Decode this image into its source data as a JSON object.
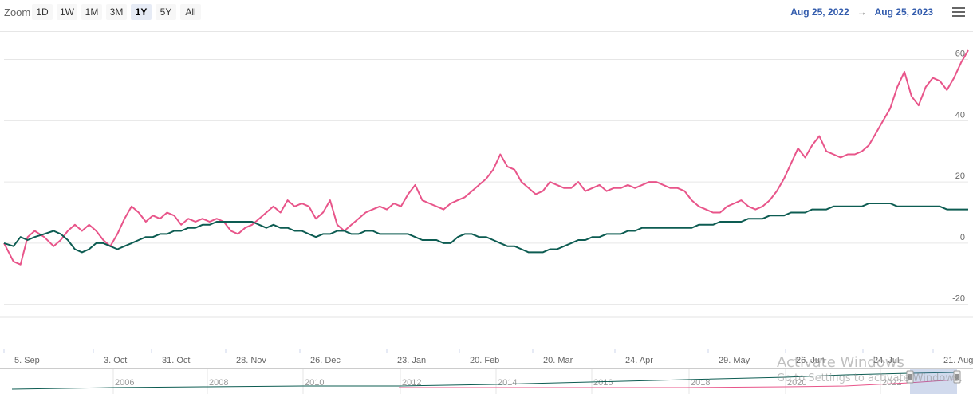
{
  "toolbar": {
    "zoom_label": "Zoom",
    "zoom_buttons": [
      "1D",
      "1W",
      "1M",
      "3M",
      "1Y",
      "5Y",
      "All"
    ],
    "active_zoom": "1Y",
    "date_from": "Aug 25, 2022",
    "date_arrow": "→",
    "date_to": "Aug 25, 2023"
  },
  "colors": {
    "series_1": "#e8558a",
    "series_2": "#0d5c52",
    "grid": "#e6e6e6",
    "axis_text": "#666666"
  },
  "chart_data": {
    "type": "line",
    "title": "",
    "xlabel": "",
    "ylabel": "",
    "ylim": [
      -24,
      69
    ],
    "y_ticks": [
      60,
      40,
      20,
      0,
      -20
    ],
    "x_tick_labels": [
      "5. Sep",
      "3. Oct",
      "31. Oct",
      "28. Nov",
      "26. Dec",
      "23. Jan",
      "20. Feb",
      "20. Mar",
      "24. Apr",
      "29. May",
      "26. Jun",
      "24. Jul",
      "21. Aug"
    ],
    "series": [
      {
        "values": [
          [
            0,
            0
          ],
          [
            4,
            -6
          ],
          [
            7,
            -7
          ],
          [
            10,
            2
          ],
          [
            13,
            4
          ],
          [
            17,
            2
          ],
          [
            21,
            -1
          ],
          [
            24,
            1
          ],
          [
            27,
            4
          ],
          [
            30,
            6
          ],
          [
            33,
            4
          ],
          [
            36,
            6
          ],
          [
            39,
            4
          ],
          [
            42,
            1
          ],
          [
            45,
            -1
          ],
          [
            48,
            3
          ],
          [
            51,
            8
          ],
          [
            54,
            12
          ],
          [
            57,
            10
          ],
          [
            60,
            7
          ],
          [
            63,
            9
          ],
          [
            66,
            8
          ],
          [
            69,
            10
          ],
          [
            72,
            9
          ],
          [
            75,
            6
          ],
          [
            78,
            8
          ],
          [
            81,
            7
          ],
          [
            84,
            8
          ],
          [
            87,
            7
          ],
          [
            90,
            8
          ],
          [
            93,
            7
          ],
          [
            96,
            4
          ],
          [
            99,
            3
          ],
          [
            102,
            5
          ],
          [
            105,
            6
          ],
          [
            108,
            8
          ],
          [
            111,
            10
          ],
          [
            114,
            12
          ],
          [
            117,
            10
          ],
          [
            120,
            14
          ],
          [
            123,
            12
          ],
          [
            126,
            13
          ],
          [
            129,
            12
          ],
          [
            132,
            8
          ],
          [
            135,
            10
          ],
          [
            138,
            14
          ],
          [
            141,
            6
          ],
          [
            144,
            4
          ],
          [
            147,
            6
          ],
          [
            150,
            8
          ],
          [
            153,
            10
          ],
          [
            156,
            11
          ],
          [
            159,
            12
          ],
          [
            162,
            11
          ],
          [
            165,
            13
          ],
          [
            168,
            12
          ],
          [
            171,
            16
          ],
          [
            174,
            19
          ],
          [
            177,
            14
          ],
          [
            180,
            13
          ],
          [
            183,
            12
          ],
          [
            186,
            11
          ],
          [
            189,
            13
          ],
          [
            192,
            14
          ],
          [
            195,
            15
          ],
          [
            198,
            17
          ],
          [
            201,
            19
          ],
          [
            204,
            21
          ],
          [
            207,
            24
          ],
          [
            210,
            29
          ],
          [
            213,
            25
          ],
          [
            216,
            24
          ],
          [
            219,
            20
          ],
          [
            222,
            18
          ],
          [
            225,
            16
          ],
          [
            228,
            17
          ],
          [
            231,
            20
          ],
          [
            234,
            19
          ],
          [
            237,
            18
          ],
          [
            240,
            18
          ],
          [
            243,
            20
          ],
          [
            246,
            17
          ],
          [
            249,
            18
          ],
          [
            252,
            19
          ],
          [
            255,
            17
          ],
          [
            258,
            18
          ],
          [
            261,
            18
          ],
          [
            264,
            19
          ],
          [
            267,
            18
          ],
          [
            270,
            19
          ],
          [
            273,
            20
          ],
          [
            276,
            20
          ],
          [
            279,
            19
          ],
          [
            282,
            18
          ],
          [
            285,
            18
          ],
          [
            288,
            17
          ],
          [
            291,
            14
          ],
          [
            294,
            12
          ],
          [
            297,
            11
          ],
          [
            300,
            10
          ],
          [
            303,
            10
          ],
          [
            306,
            12
          ],
          [
            309,
            13
          ],
          [
            312,
            14
          ],
          [
            315,
            12
          ],
          [
            318,
            11
          ],
          [
            321,
            12
          ],
          [
            324,
            14
          ],
          [
            327,
            17
          ],
          [
            330,
            21
          ],
          [
            333,
            26
          ],
          [
            336,
            31
          ],
          [
            339,
            28
          ],
          [
            342,
            32
          ],
          [
            345,
            35
          ],
          [
            348,
            30
          ],
          [
            351,
            29
          ],
          [
            354,
            28
          ],
          [
            357,
            29
          ],
          [
            360,
            29
          ],
          [
            363,
            30
          ],
          [
            366,
            32
          ],
          [
            369,
            36
          ],
          [
            372,
            40
          ],
          [
            375,
            44
          ],
          [
            378,
            51
          ],
          [
            381,
            56
          ],
          [
            384,
            48
          ],
          [
            387,
            45
          ],
          [
            390,
            51
          ],
          [
            393,
            54
          ],
          [
            396,
            53
          ],
          [
            399,
            50
          ],
          [
            402,
            54
          ],
          [
            405,
            59
          ],
          [
            408,
            63
          ]
        ]
      },
      {
        "values": [
          [
            0,
            0
          ],
          [
            4,
            -1
          ],
          [
            7,
            2
          ],
          [
            10,
            1
          ],
          [
            13,
            2
          ],
          [
            17,
            3
          ],
          [
            21,
            4
          ],
          [
            24,
            3
          ],
          [
            27,
            1
          ],
          [
            30,
            -2
          ],
          [
            33,
            -3
          ],
          [
            36,
            -2
          ],
          [
            39,
            0
          ],
          [
            42,
            0
          ],
          [
            45,
            -1
          ],
          [
            48,
            -2
          ],
          [
            51,
            -1
          ],
          [
            54,
            0
          ],
          [
            57,
            1
          ],
          [
            60,
            2
          ],
          [
            63,
            2
          ],
          [
            66,
            3
          ],
          [
            69,
            3
          ],
          [
            72,
            4
          ],
          [
            75,
            4
          ],
          [
            78,
            5
          ],
          [
            81,
            5
          ],
          [
            84,
            6
          ],
          [
            87,
            6
          ],
          [
            90,
            7
          ],
          [
            93,
            7
          ],
          [
            96,
            7
          ],
          [
            99,
            7
          ],
          [
            102,
            7
          ],
          [
            105,
            7
          ],
          [
            108,
            6
          ],
          [
            111,
            5
          ],
          [
            114,
            6
          ],
          [
            117,
            5
          ],
          [
            120,
            5
          ],
          [
            123,
            4
          ],
          [
            126,
            4
          ],
          [
            129,
            3
          ],
          [
            132,
            2
          ],
          [
            135,
            3
          ],
          [
            138,
            3
          ],
          [
            141,
            4
          ],
          [
            144,
            4
          ],
          [
            147,
            3
          ],
          [
            150,
            3
          ],
          [
            153,
            4
          ],
          [
            156,
            4
          ],
          [
            159,
            3
          ],
          [
            162,
            3
          ],
          [
            165,
            3
          ],
          [
            168,
            3
          ],
          [
            171,
            3
          ],
          [
            174,
            2
          ],
          [
            177,
            1
          ],
          [
            180,
            1
          ],
          [
            183,
            1
          ],
          [
            186,
            0
          ],
          [
            189,
            0
          ],
          [
            192,
            2
          ],
          [
            195,
            3
          ],
          [
            198,
            3
          ],
          [
            201,
            2
          ],
          [
            204,
            2
          ],
          [
            207,
            1
          ],
          [
            210,
            0
          ],
          [
            213,
            -1
          ],
          [
            216,
            -1
          ],
          [
            219,
            -2
          ],
          [
            222,
            -3
          ],
          [
            225,
            -3
          ],
          [
            228,
            -3
          ],
          [
            231,
            -2
          ],
          [
            234,
            -2
          ],
          [
            237,
            -1
          ],
          [
            240,
            0
          ],
          [
            243,
            1
          ],
          [
            246,
            1
          ],
          [
            249,
            2
          ],
          [
            252,
            2
          ],
          [
            255,
            3
          ],
          [
            258,
            3
          ],
          [
            261,
            3
          ],
          [
            264,
            4
          ],
          [
            267,
            4
          ],
          [
            270,
            5
          ],
          [
            273,
            5
          ],
          [
            276,
            5
          ],
          [
            279,
            5
          ],
          [
            282,
            5
          ],
          [
            285,
            5
          ],
          [
            288,
            5
          ],
          [
            291,
            5
          ],
          [
            294,
            6
          ],
          [
            297,
            6
          ],
          [
            300,
            6
          ],
          [
            303,
            7
          ],
          [
            306,
            7
          ],
          [
            309,
            7
          ],
          [
            312,
            7
          ],
          [
            315,
            8
          ],
          [
            318,
            8
          ],
          [
            321,
            8
          ],
          [
            324,
            9
          ],
          [
            327,
            9
          ],
          [
            330,
            9
          ],
          [
            333,
            10
          ],
          [
            336,
            10
          ],
          [
            339,
            10
          ],
          [
            342,
            11
          ],
          [
            345,
            11
          ],
          [
            348,
            11
          ],
          [
            351,
            12
          ],
          [
            354,
            12
          ],
          [
            357,
            12
          ],
          [
            360,
            12
          ],
          [
            363,
            12
          ],
          [
            366,
            13
          ],
          [
            369,
            13
          ],
          [
            372,
            13
          ],
          [
            375,
            13
          ],
          [
            378,
            12
          ],
          [
            381,
            12
          ],
          [
            384,
            12
          ],
          [
            387,
            12
          ],
          [
            390,
            12
          ],
          [
            393,
            12
          ],
          [
            396,
            12
          ],
          [
            399,
            11
          ],
          [
            402,
            11
          ],
          [
            405,
            11
          ],
          [
            408,
            11
          ]
        ]
      }
    ],
    "navigator_years": [
      "2006",
      "2008",
      "2010",
      "2012",
      "2014",
      "2016",
      "2018",
      "2020",
      "2022"
    ],
    "grid": true,
    "legend": "none"
  },
  "watermark": {
    "line1": "Activate Windows",
    "line2": "Go to Settings to activate Windows."
  }
}
